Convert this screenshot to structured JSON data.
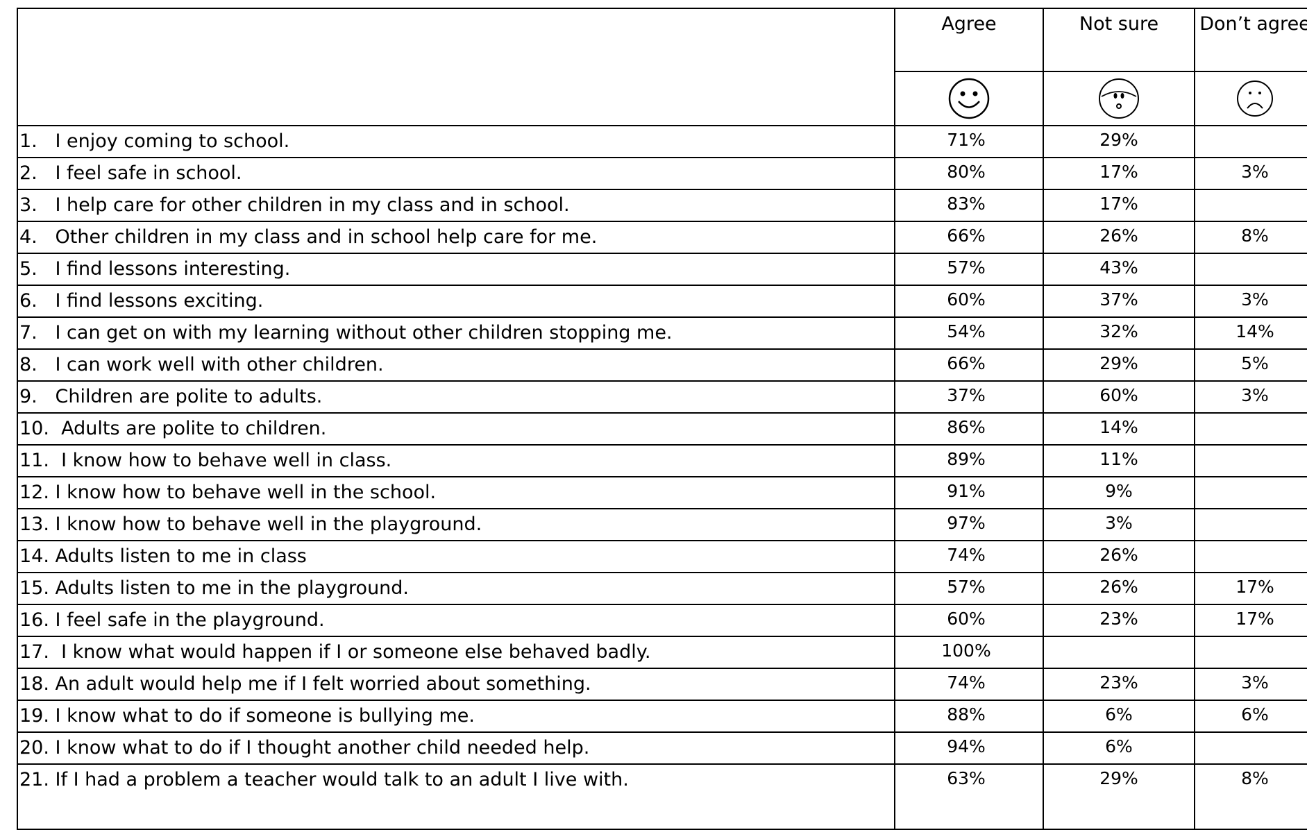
{
  "columns": {
    "agree": "Agree",
    "not_sure": "Not sure",
    "dont_agree": "Don’t agree"
  },
  "icons": {
    "agree": "smiley-face-icon",
    "not_sure": "surprised-face-icon",
    "dont_agree": "sad-face-icon"
  },
  "rows": [
    {
      "statement": "1.   I enjoy coming to school.",
      "agree": "71%",
      "not_sure": "29%",
      "dont_agree": ""
    },
    {
      "statement": "2.   I feel safe in school.",
      "agree": "80%",
      "not_sure": "17%",
      "dont_agree": "3%"
    },
    {
      "statement": "3.   I help care for other children in my class and in school.",
      "agree": "83%",
      "not_sure": "17%",
      "dont_agree": ""
    },
    {
      "statement": "4.   Other children in my class and in school help care for me.",
      "agree": "66%",
      "not_sure": "26%",
      "dont_agree": "8%"
    },
    {
      "statement": "5.   I find lessons interesting.",
      "agree": "57%",
      "not_sure": "43%",
      "dont_agree": ""
    },
    {
      "statement": "6.   I find lessons exciting.",
      "agree": "60%",
      "not_sure": "37%",
      "dont_agree": "3%"
    },
    {
      "statement": "7.   I can get on with my learning without other children stopping me.",
      "agree": "54%",
      "not_sure": "32%",
      "dont_agree": "14%"
    },
    {
      "statement": "8.   I can work well with other children.",
      "agree": "66%",
      "not_sure": "29%",
      "dont_agree": "5%"
    },
    {
      "statement": "9.   Children are polite to adults.",
      "agree": "37%",
      "not_sure": "60%",
      "dont_agree": "3%"
    },
    {
      "statement": "10.  Adults are polite to children.",
      "agree": "86%",
      "not_sure": "14%",
      "dont_agree": ""
    },
    {
      "statement": "11.  I know how to behave well in class.",
      "agree": "89%",
      "not_sure": "11%",
      "dont_agree": ""
    },
    {
      "statement": "12. I know how to behave well in the school.",
      "agree": "91%",
      "not_sure": "9%",
      "dont_agree": ""
    },
    {
      "statement": "13. I know how to behave well in the playground.",
      "agree": "97%",
      "not_sure": "3%",
      "dont_agree": ""
    },
    {
      "statement": "14. Adults listen to me in class",
      "agree": "74%",
      "not_sure": "26%",
      "dont_agree": ""
    },
    {
      "statement": "15. Adults listen to me in the playground.",
      "agree": "57%",
      "not_sure": "26%",
      "dont_agree": "17%"
    },
    {
      "statement": "16. I feel safe in the playground.",
      "agree": "60%",
      "not_sure": "23%",
      "dont_agree": "17%"
    },
    {
      "statement": "17.  I know what would happen if I or someone else behaved badly.",
      "agree": "100%",
      "not_sure": "",
      "dont_agree": ""
    },
    {
      "statement": "18. An adult would help me if I felt worried about something.",
      "agree": "74%",
      "not_sure": "23%",
      "dont_agree": "3%"
    },
    {
      "statement": "19. I know what to do if someone is bullying me.",
      "agree": "88%",
      "not_sure": "6%",
      "dont_agree": "6%"
    },
    {
      "statement": "20. I know what to do if I thought another child needed help.",
      "agree": "94%",
      "not_sure": "6%",
      "dont_agree": ""
    },
    {
      "statement": "21. If I had a problem a teacher would talk to an adult I live with.",
      "agree": "63%",
      "not_sure": "29%",
      "dont_agree": "8%"
    }
  ]
}
